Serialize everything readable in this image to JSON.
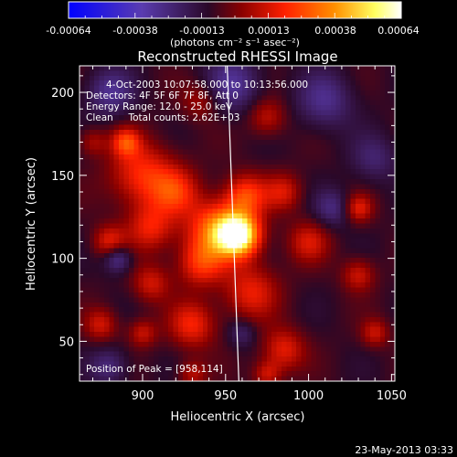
{
  "chart_data": {
    "type": "heatmap",
    "title": "Reconstructed RHESSI Image",
    "colorbar": {
      "ticks": [
        "-0.00064",
        "-0.00038",
        "-0.00013",
        "0.00013",
        "0.00038",
        "0.00064"
      ],
      "range": [
        -0.00064,
        0.00064
      ],
      "unit_label": "(photons cm⁻² s⁻¹ asec⁻²)",
      "colors": [
        "#0000ff",
        "#5a3cb0",
        "#2a0828",
        "#8a0000",
        "#ff2000",
        "#ff9000",
        "#ffff60",
        "#ffffff"
      ]
    },
    "annotations": [
      "4-Oct-2003 10:07:58.000 to 10:13:56.000",
      "Detectors: 4F 5F 6F 7F 8F, Att 0",
      "Energy Range: 12.0 - 25.0 keV",
      "Clean     Total counts: 2.62E+03"
    ],
    "peak_label": "Position of Peak = [958,114]",
    "peak": [
      958,
      114
    ],
    "xlabel": "Heliocentric X (arcsec)",
    "ylabel": "Heliocentric Y (arcsec)",
    "xlim": [
      862,
      1052
    ],
    "ylim": [
      26,
      216
    ],
    "xticks": [
      900,
      950,
      1000,
      1050
    ],
    "yticks": [
      50,
      100,
      150,
      200
    ],
    "limb_line": [
      [
        951,
        216
      ],
      [
        958,
        26
      ]
    ],
    "blobs": [
      {
        "x": 958,
        "y": 114,
        "amp": 1.0,
        "s": 9
      },
      {
        "x": 944,
        "y": 118,
        "amp": 0.55,
        "s": 12
      },
      {
        "x": 962,
        "y": 138,
        "amp": 0.45,
        "s": 9
      },
      {
        "x": 935,
        "y": 97,
        "amp": 0.4,
        "s": 10
      },
      {
        "x": 900,
        "y": 150,
        "amp": 0.42,
        "s": 14
      },
      {
        "x": 920,
        "y": 140,
        "amp": 0.35,
        "s": 10
      },
      {
        "x": 890,
        "y": 170,
        "amp": 0.4,
        "s": 6
      },
      {
        "x": 905,
        "y": 118,
        "amp": 0.35,
        "s": 10
      },
      {
        "x": 880,
        "y": 110,
        "amp": 0.35,
        "s": 7
      },
      {
        "x": 905,
        "y": 85,
        "amp": 0.3,
        "s": 8
      },
      {
        "x": 930,
        "y": 60,
        "amp": 0.38,
        "s": 10
      },
      {
        "x": 900,
        "y": 55,
        "amp": 0.28,
        "s": 6
      },
      {
        "x": 875,
        "y": 60,
        "amp": 0.3,
        "s": 7
      },
      {
        "x": 965,
        "y": 80,
        "amp": 0.35,
        "s": 12
      },
      {
        "x": 985,
        "y": 45,
        "amp": 0.35,
        "s": 9
      },
      {
        "x": 1000,
        "y": 110,
        "amp": 0.3,
        "s": 9
      },
      {
        "x": 985,
        "y": 140,
        "amp": 0.3,
        "s": 8
      },
      {
        "x": 1030,
        "y": 130,
        "amp": 0.35,
        "s": 6
      },
      {
        "x": 1030,
        "y": 90,
        "amp": 0.3,
        "s": 7
      },
      {
        "x": 1040,
        "y": 55,
        "amp": 0.28,
        "s": 6
      },
      {
        "x": 975,
        "y": 185,
        "amp": 0.28,
        "s": 8
      },
      {
        "x": 935,
        "y": 195,
        "amp": 0.22,
        "s": 8
      },
      {
        "x": 870,
        "y": 170,
        "amp": 0.22,
        "s": 6
      },
      {
        "x": 975,
        "y": 30,
        "amp": 0.3,
        "s": 6
      },
      {
        "x": 930,
        "y": 30,
        "amp": 0.25,
        "s": 6
      },
      {
        "x": 885,
        "y": 100,
        "amp": -0.35,
        "s": 6
      },
      {
        "x": 955,
        "y": 205,
        "amp": -0.3,
        "s": 12
      },
      {
        "x": 1010,
        "y": 195,
        "amp": -0.28,
        "s": 12
      },
      {
        "x": 1015,
        "y": 130,
        "amp": -0.25,
        "s": 8
      },
      {
        "x": 880,
        "y": 200,
        "amp": -0.3,
        "s": 10
      },
      {
        "x": 1040,
        "y": 160,
        "amp": -0.2,
        "s": 10
      },
      {
        "x": 960,
        "y": 55,
        "amp": -0.2,
        "s": 6
      },
      {
        "x": 880,
        "y": 35,
        "amp": -0.25,
        "s": 8
      }
    ]
  },
  "footer": {
    "timestamp": "23-May-2013 03:33"
  }
}
